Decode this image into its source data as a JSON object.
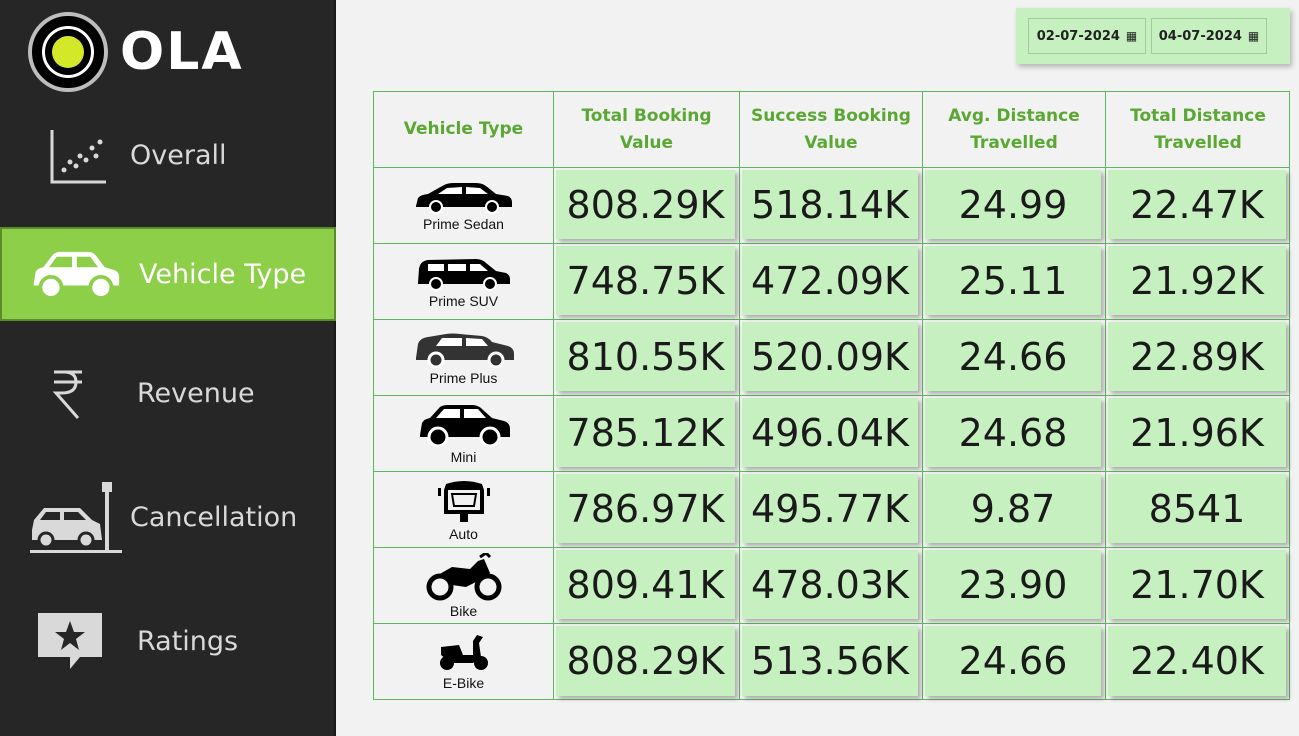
{
  "brand": {
    "name": "OLA"
  },
  "nav": [
    {
      "label": "Overall",
      "icon": "scatter-chart-icon"
    },
    {
      "label": "Vehicle Type",
      "icon": "car-icon"
    },
    {
      "label": "Revenue",
      "icon": "rupee-icon"
    },
    {
      "label": "Cancellation",
      "icon": "car-crash-icon"
    },
    {
      "label": "Ratings",
      "icon": "star-comment-icon"
    }
  ],
  "active_nav": "Vehicle Type",
  "dates": {
    "start": "02-07-2024",
    "end": "04-07-2024"
  },
  "table": {
    "headers": [
      "Vehicle Type",
      "Total Booking\nValue",
      "Success Booking\nValue",
      "Avg. Distance\nTravelled",
      "Total Distance\nTravelled"
    ],
    "rows": [
      {
        "vehicle": "Prime Sedan",
        "icon": "sedan-icon",
        "values": [
          "808.29K",
          "518.14K",
          "24.99",
          "22.47K"
        ]
      },
      {
        "vehicle": "Prime SUV",
        "icon": "suv-icon",
        "values": [
          "748.75K",
          "472.09K",
          "25.11",
          "21.92K"
        ]
      },
      {
        "vehicle": "Prime Plus",
        "icon": "prime-plus-car-icon",
        "values": [
          "810.55K",
          "520.09K",
          "24.66",
          "22.89K"
        ]
      },
      {
        "vehicle": "Mini",
        "icon": "mini-car-icon",
        "values": [
          "785.12K",
          "496.04K",
          "24.68",
          "21.96K"
        ]
      },
      {
        "vehicle": "Auto",
        "icon": "auto-rickshaw-icon",
        "values": [
          "786.97K",
          "495.77K",
          "9.87",
          "8541"
        ]
      },
      {
        "vehicle": "Bike",
        "icon": "motorbike-icon",
        "values": [
          "809.41K",
          "478.03K",
          "23.90",
          "21.70K"
        ]
      },
      {
        "vehicle": "E-Bike",
        "icon": "scooter-icon",
        "values": [
          "808.29K",
          "513.56K",
          "24.66",
          "22.40K"
        ]
      }
    ]
  },
  "colors": {
    "sidebar": "#262626",
    "accent": "#8ecf4a",
    "cell": "#c7f0c1",
    "header_text": "#5aa833",
    "border": "#5cb85c"
  }
}
